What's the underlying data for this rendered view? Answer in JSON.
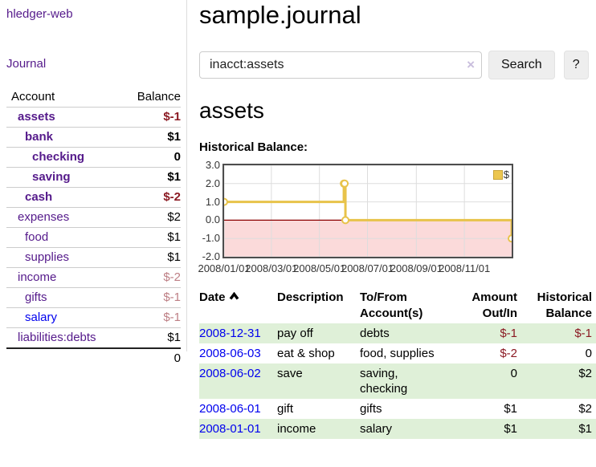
{
  "app_title": "hledger-web",
  "sidebar": {
    "nav_journal": "Journal",
    "headers": {
      "account": "Account",
      "balance": "Balance"
    },
    "rows": [
      {
        "name": "assets",
        "balance": "$-1"
      },
      {
        "name": "bank",
        "balance": "$1"
      },
      {
        "name": "checking",
        "balance": "0"
      },
      {
        "name": "saving",
        "balance": "$1"
      },
      {
        "name": "cash",
        "balance": "$-2"
      },
      {
        "name": "expenses",
        "balance": "$2"
      },
      {
        "name": "food",
        "balance": "$1"
      },
      {
        "name": "supplies",
        "balance": "$1"
      },
      {
        "name": "income",
        "balance": "$-2"
      },
      {
        "name": "gifts",
        "balance": "$-1"
      },
      {
        "name": "salary",
        "balance": "$-1"
      },
      {
        "name": "liabilities:debts",
        "balance": "$1"
      }
    ],
    "total": "0"
  },
  "main": {
    "title": "sample.journal",
    "search": {
      "value": "inacct:assets",
      "clear_icon": "×",
      "button_label": "Search",
      "help_label": "?"
    },
    "account_heading": "assets",
    "chart_label": "Historical Balance:"
  },
  "register": {
    "headers": {
      "date": "Date",
      "description": "Description",
      "tofrom": "To/From Account(s)",
      "amount": "Amount Out/In",
      "balance": "Historical Balance"
    },
    "rows": [
      {
        "date": "2008-12-31",
        "description": "pay off",
        "accounts": "debts",
        "amount": "$-1",
        "balance": "$-1"
      },
      {
        "date": "2008-06-03",
        "description": "eat & shop",
        "accounts": "food, supplies",
        "amount": "$-2",
        "balance": "0"
      },
      {
        "date": "2008-06-02",
        "description": "save",
        "accounts": "saving, checking",
        "amount": "0",
        "balance": "$2"
      },
      {
        "date": "2008-06-01",
        "description": "gift",
        "accounts": "gifts",
        "amount": "$1",
        "balance": "$2"
      },
      {
        "date": "2008-01-01",
        "description": "income",
        "accounts": "salary",
        "amount": "$1",
        "balance": "$1"
      }
    ]
  },
  "chart_data": {
    "type": "line",
    "title": "Historical Balance",
    "step": true,
    "x": [
      "2008-01-01",
      "2008-06-01",
      "2008-06-02",
      "2008-06-03",
      "2008-12-31"
    ],
    "series": [
      {
        "name": "$",
        "values": [
          1,
          2,
          2,
          0,
          -1
        ]
      }
    ],
    "xlim": [
      "2008-01-01",
      "2008-12-31"
    ],
    "ylim": [
      -2,
      3
    ],
    "x_ticks": [
      {
        "date": "2008-01-01",
        "label": "2008/01/01"
      },
      {
        "date": "2008-03-01",
        "label": "2008/03/01"
      },
      {
        "date": "2008-05-01",
        "label": "2008/05/01"
      },
      {
        "date": "2008-07-01",
        "label": "2008/07/01"
      },
      {
        "date": "2008-09-01",
        "label": "2008/09/01"
      },
      {
        "date": "2008-11-01",
        "label": "2008/11/01"
      }
    ],
    "y_ticks": [
      {
        "value": 3,
        "label": "3.0"
      },
      {
        "value": 2,
        "label": "2.0"
      },
      {
        "value": 1,
        "label": "1.0"
      },
      {
        "value": 0,
        "label": "0.0"
      },
      {
        "value": -1,
        "label": "-1.0"
      },
      {
        "value": -2,
        "label": "-2.0"
      }
    ],
    "grid": true,
    "legend_position": "top-right",
    "colors": {
      "line": "#e8c34a",
      "marker_fill": "#ffffff",
      "below_zero_fill": "#fbdada",
      "zero_line": "#8b0000",
      "grid": "#dddddd",
      "border": "#4d4d4d"
    }
  },
  "palette": {
    "link_purple": "#551a8b",
    "link_blue": "#0000ee",
    "neg_strong": "#8b1a23",
    "neg_soft": "#bd7e84",
    "row_green": "#dff0d8"
  }
}
